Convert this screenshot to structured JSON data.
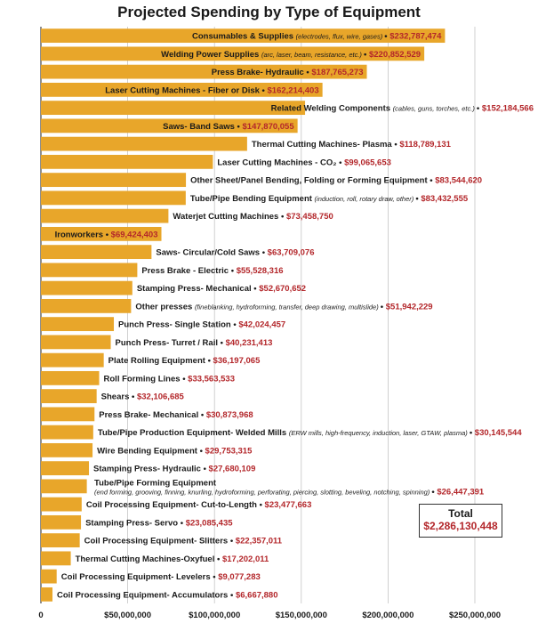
{
  "chart_data": {
    "type": "bar",
    "orientation": "horizontal",
    "title": "Projected Spending by Type of Equipment",
    "xlim": [
      0,
      250000000
    ],
    "grid": true,
    "bar_color": "#e8a62a",
    "value_color": "#b3262a",
    "x_ticks": [
      "0",
      "$50,000,000",
      "$100,000,000",
      "$150,000,000",
      "$200,000,000",
      "$250,000,000"
    ],
    "x_tick_values": [
      0,
      50000000,
      100000000,
      150000000,
      200000000,
      250000000
    ],
    "categories": [
      {
        "name": "Consumables & Supplies",
        "note": "(electrodes, flux, wire, gases)",
        "value": 232787474,
        "value_label": "$232,787,474"
      },
      {
        "name": "Welding Power Supplies",
        "note": "(arc, laser, beam, resistance, etc.)",
        "value": 220852529,
        "value_label": "$220,852,529"
      },
      {
        "name": "Press Brake- Hydraulic",
        "note": "",
        "value": 187765273,
        "value_label": "$187,765,273"
      },
      {
        "name": "Laser Cutting Machines - Fiber or Disk",
        "note": "",
        "value": 162214403,
        "value_label": "$162,214,403"
      },
      {
        "name": "Related Welding Components",
        "note": "(cables, guns, torches, etc.)",
        "value": 152184566,
        "value_label": "$152,184,566"
      },
      {
        "name": "Saws- Band Saws",
        "note": "",
        "value": 147870055,
        "value_label": "$147,870,055"
      },
      {
        "name": "Thermal Cutting Machines- Plasma",
        "note": "",
        "value": 118789131,
        "value_label": "$118,789,131"
      },
      {
        "name": "Laser Cutting Machines - CO₂",
        "note": "",
        "value": 99065653,
        "value_label": "$99,065,653"
      },
      {
        "name": "Other Sheet/Panel Bending, Folding or Forming Equipment",
        "note": "",
        "value": 83544620,
        "value_label": "$83,544,620"
      },
      {
        "name": "Tube/Pipe Bending Equipment",
        "note": "(induction, roll, rotary draw, other)",
        "value": 83432555,
        "value_label": "$83,432,555"
      },
      {
        "name": "Waterjet Cutting Machines",
        "note": "",
        "value": 73458750,
        "value_label": "$73,458,750"
      },
      {
        "name": "Ironworkers",
        "note": "",
        "value": 69424403,
        "value_label": "$69,424,403"
      },
      {
        "name": "Saws- Circular/Cold Saws",
        "note": "",
        "value": 63709076,
        "value_label": "$63,709,076"
      },
      {
        "name": "Press Brake - Electric",
        "note": "",
        "value": 55528316,
        "value_label": "$55,528,316"
      },
      {
        "name": "Stamping Press- Mechanical",
        "note": "",
        "value": 52670652,
        "value_label": "$52,670,652"
      },
      {
        "name": "Other presses",
        "note": "(fineblanking, hydroforming, transfer, deep drawing, multislide)",
        "value": 51942229,
        "value_label": "$51,942,229"
      },
      {
        "name": "Punch Press- Single Station",
        "note": "",
        "value": 42024457,
        "value_label": "$42,024,457"
      },
      {
        "name": "Punch Press- Turret / Rail",
        "note": "",
        "value": 40231413,
        "value_label": "$40,231,413"
      },
      {
        "name": "Plate Rolling Equipment",
        "note": "",
        "value": 36197065,
        "value_label": "$36,197,065"
      },
      {
        "name": "Roll Forming Lines",
        "note": "",
        "value": 33563533,
        "value_label": "$33,563,533"
      },
      {
        "name": "Shears",
        "note": "",
        "value": 32106685,
        "value_label": "$32,106,685"
      },
      {
        "name": "Press Brake- Mechanical",
        "note": "",
        "value": 30873968,
        "value_label": "$30,873,968"
      },
      {
        "name": "Tube/Pipe Production Equipment- Welded Mills",
        "note": "(ERW mills, high-frequency, induction, laser, GTAW, plasma)",
        "value": 30145544,
        "value_label": "$30,145,544"
      },
      {
        "name": "Wire Bending Equipment",
        "note": "",
        "value": 29753315,
        "value_label": "$29,753,315"
      },
      {
        "name": "Stamping Press- Hydraulic",
        "note": "",
        "value": 27680109,
        "value_label": "$27,680,109"
      },
      {
        "name": "Tube/Pipe Forming Equipment",
        "note": "(end forming, grooving, finning, knurling, hydroforming, perforating, piercing, slotting, beveling, notching, spinning)",
        "value": 26447391,
        "value_label": "$26,447,391",
        "two_line": true
      },
      {
        "name": "Coil Processing Equipment- Cut-to-Length",
        "note": "",
        "value": 23477663,
        "value_label": "$23,477,663"
      },
      {
        "name": "Stamping Press- Servo",
        "note": "",
        "value": 23085435,
        "value_label": "$23,085,435"
      },
      {
        "name": "Coil Processing Equipment- Slitters",
        "note": "",
        "value": 22357011,
        "value_label": "$22,357,011"
      },
      {
        "name": "Thermal Cutting Machines-Oxyfuel",
        "note": "",
        "value": 17202011,
        "value_label": "$17,202,011"
      },
      {
        "name": "Coil Processing Equipment- Levelers",
        "note": "",
        "value": 9077283,
        "value_label": "$9,077,283"
      },
      {
        "name": "Coil Processing Equipment- Accumulators",
        "note": "",
        "value": 6667880,
        "value_label": "$6,667,880"
      }
    ],
    "total": {
      "label": "Total",
      "value": 2286130448,
      "value_label": "$2,286,130,448"
    }
  }
}
